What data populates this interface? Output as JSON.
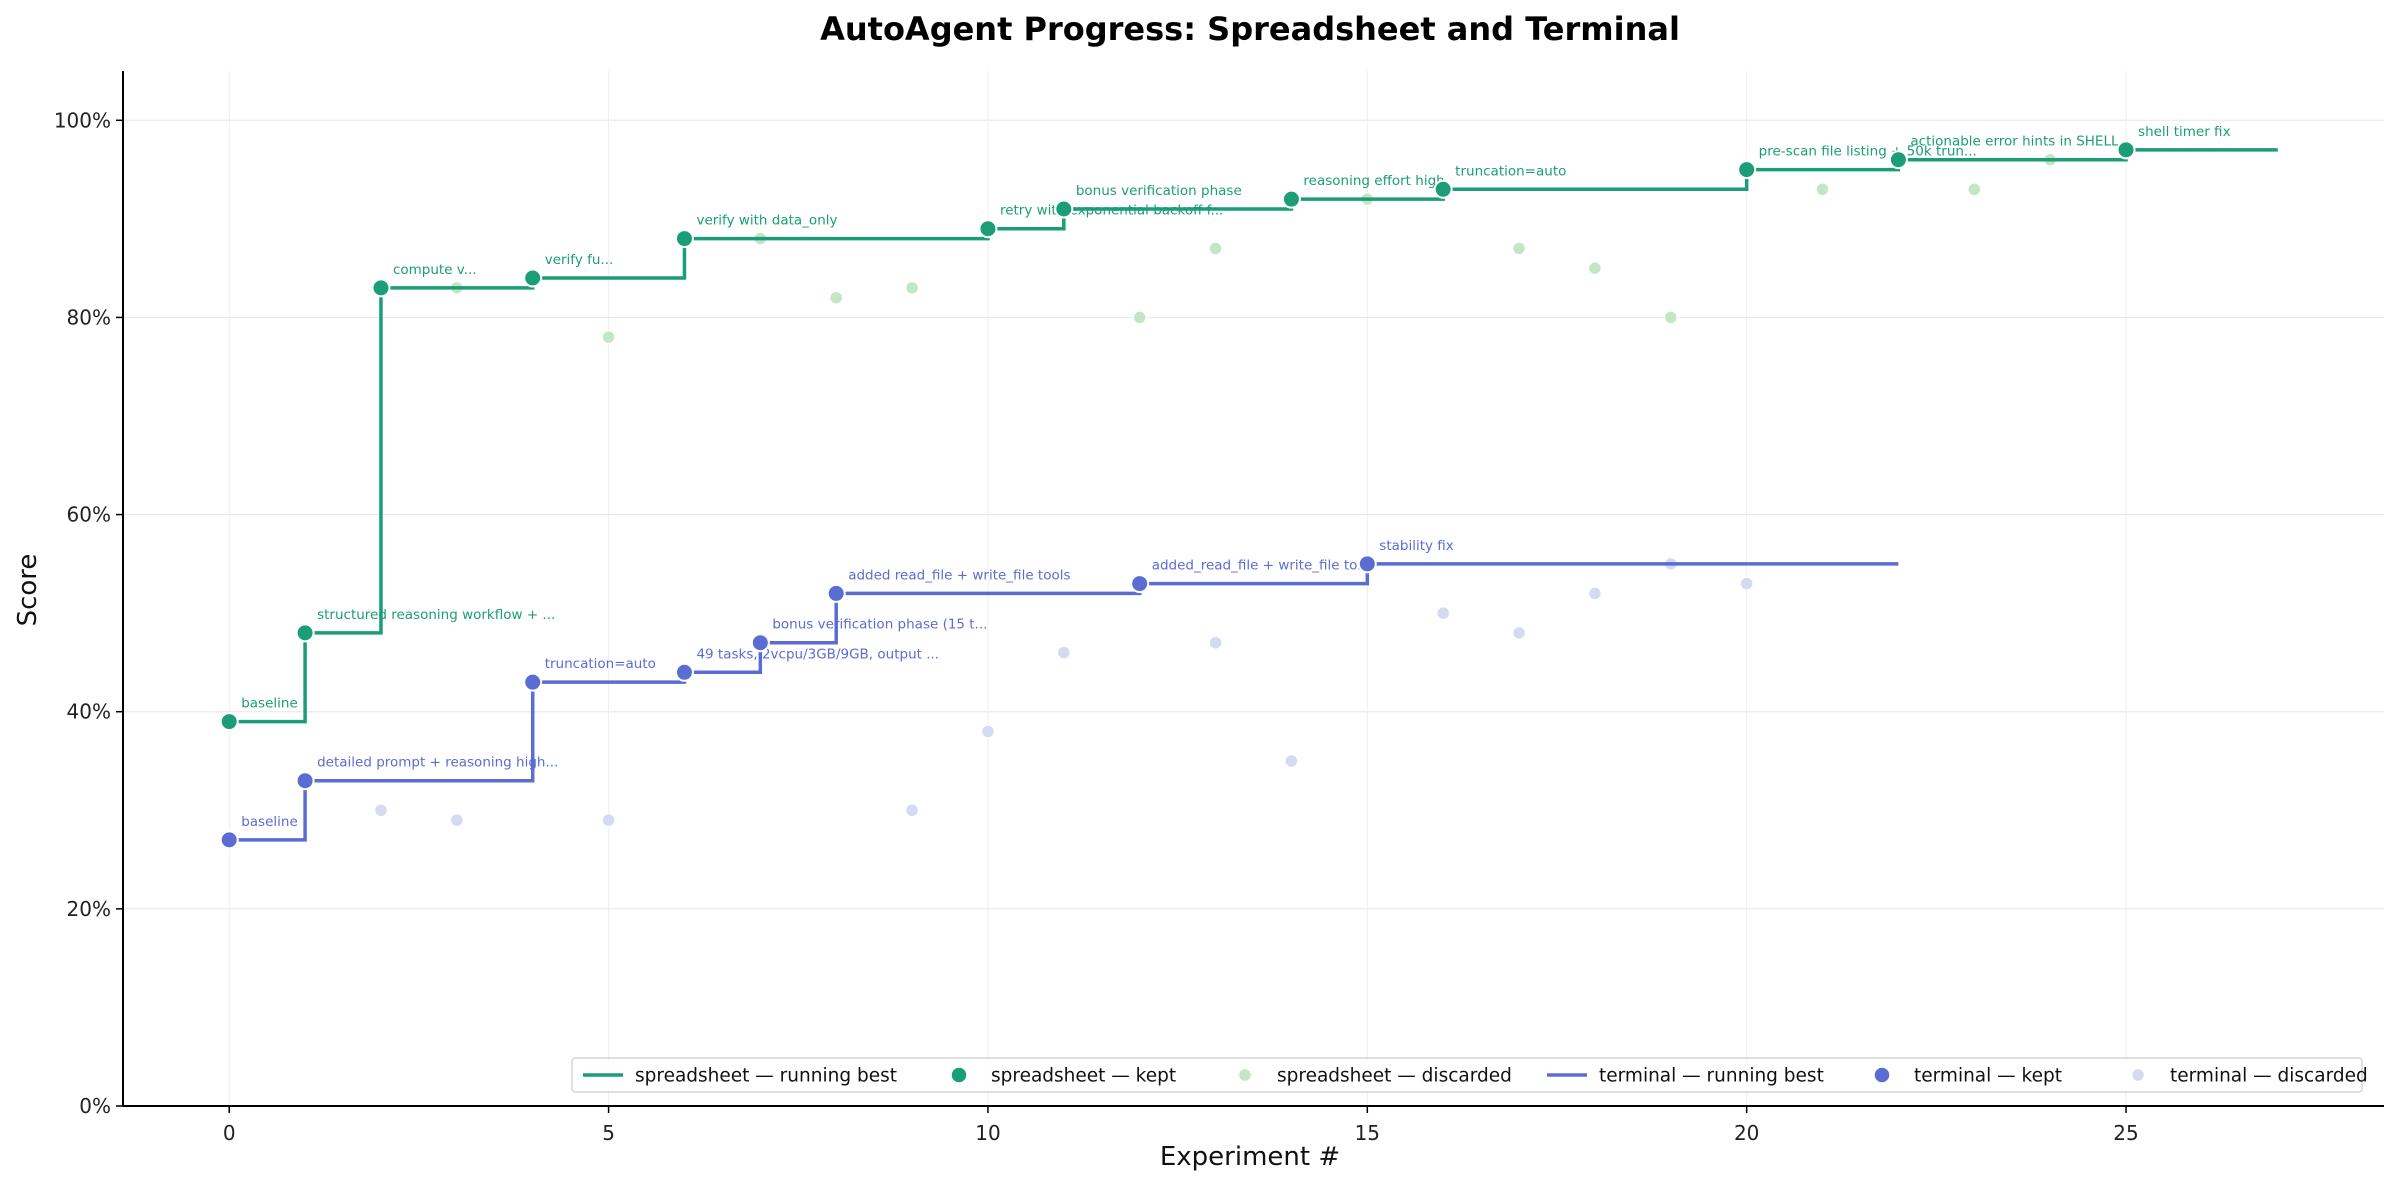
{
  "chart_data": {
    "type": "line",
    "title": "AutoAgent Progress: Spreadsheet and Terminal",
    "xlabel": "Experiment #",
    "ylabel": "Score",
    "xlim": [
      -1.4,
      28.4
    ],
    "ylim": [
      0,
      105
    ],
    "x_ticks": [
      0,
      5,
      10,
      15,
      20,
      25
    ],
    "x_tick_labels": [
      "0",
      "5",
      "10",
      "15",
      "20",
      "25"
    ],
    "y_ticks": [
      0,
      20,
      40,
      60,
      80,
      100
    ],
    "y_tick_labels": [
      "0%",
      "20%",
      "40%",
      "60%",
      "80%",
      "100%"
    ],
    "grid": true,
    "legend_position": "bottom-right",
    "series": [
      {
        "key": "spreadsheet",
        "color": "#1b9e77",
        "faded_color": "#c3e6c6",
        "running_best_name": "spreadsheet — running best",
        "kept_name": "spreadsheet — kept",
        "discarded_name": "spreadsheet — discarded",
        "running_best_end_x": 27,
        "kept": [
          {
            "x": 0,
            "y": 39,
            "label": "baseline"
          },
          {
            "x": 1,
            "y": 48,
            "label": "structured reasoning workflow + ..."
          },
          {
            "x": 2,
            "y": 83,
            "label": "compute v..."
          },
          {
            "x": 4,
            "y": 84,
            "label": "verify fu..."
          },
          {
            "x": 6,
            "y": 88,
            "label": "verify with data_only"
          },
          {
            "x": 10,
            "y": 89,
            "label": "retry with exponential backoff f..."
          },
          {
            "x": 11,
            "y": 91,
            "label": "bonus verification phase"
          },
          {
            "x": 14,
            "y": 92,
            "label": "reasoning effort high"
          },
          {
            "x": 16,
            "y": 93,
            "label": "truncation=auto"
          },
          {
            "x": 20,
            "y": 95,
            "label": "pre-scan file listing + 50k trun..."
          },
          {
            "x": 22,
            "y": 96,
            "label": "actionable error hints in SHELL"
          },
          {
            "x": 25,
            "y": 97,
            "label": "shell timer fix"
          }
        ],
        "discarded": [
          {
            "x": 3,
            "y": 83
          },
          {
            "x": 5,
            "y": 78
          },
          {
            "x": 7,
            "y": 88
          },
          {
            "x": 8,
            "y": 82
          },
          {
            "x": 9,
            "y": 83
          },
          {
            "x": 12,
            "y": 80
          },
          {
            "x": 13,
            "y": 87
          },
          {
            "x": 15,
            "y": 92
          },
          {
            "x": 17,
            "y": 87
          },
          {
            "x": 18,
            "y": 85
          },
          {
            "x": 19,
            "y": 80
          },
          {
            "x": 21,
            "y": 93
          },
          {
            "x": 23,
            "y": 93
          },
          {
            "x": 24,
            "y": 96
          }
        ]
      },
      {
        "key": "terminal",
        "color": "#5b6dd3",
        "faded_color": "#d6d9f2",
        "running_best_name": "terminal — running best",
        "kept_name": "terminal — kept",
        "discarded_name": "terminal — discarded",
        "running_best_end_x": 22,
        "kept": [
          {
            "x": 0,
            "y": 27,
            "label": "baseline"
          },
          {
            "x": 1,
            "y": 33,
            "label": "detailed prompt + reasoning high..."
          },
          {
            "x": 4,
            "y": 43,
            "label": "truncation=auto"
          },
          {
            "x": 6,
            "y": 44,
            "label": "49 tasks, 2vcpu/3GB/9GB, output ..."
          },
          {
            "x": 7,
            "y": 47,
            "label": "bonus verification phase (15 t..."
          },
          {
            "x": 8,
            "y": 52,
            "label": "added read_file + write_file tools"
          },
          {
            "x": 12,
            "y": 53,
            "label": "added_read_file + write_file to..."
          },
          {
            "x": 15,
            "y": 55,
            "label": "stability fix"
          }
        ],
        "discarded": [
          {
            "x": 2,
            "y": 30
          },
          {
            "x": 3,
            "y": 29
          },
          {
            "x": 5,
            "y": 29
          },
          {
            "x": 9,
            "y": 30
          },
          {
            "x": 10,
            "y": 38
          },
          {
            "x": 11,
            "y": 46
          },
          {
            "x": 13,
            "y": 47
          },
          {
            "x": 14,
            "y": 35
          },
          {
            "x": 16,
            "y": 50
          },
          {
            "x": 17,
            "y": 48
          },
          {
            "x": 18,
            "y": 52
          },
          {
            "x": 19,
            "y": 55
          },
          {
            "x": 20,
            "y": 53
          }
        ]
      }
    ]
  }
}
